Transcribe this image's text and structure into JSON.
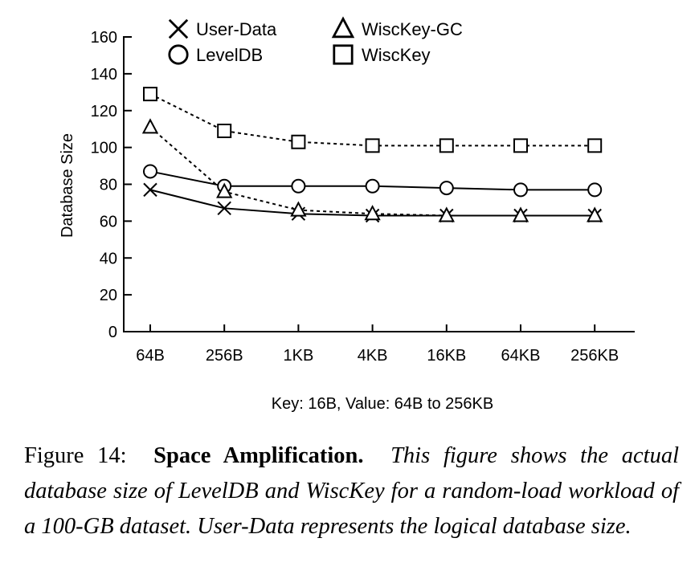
{
  "chart_data": {
    "type": "line",
    "categories": [
      "64B",
      "256B",
      "1KB",
      "4KB",
      "16KB",
      "64KB",
      "256KB"
    ],
    "xlabel": "Key: 16B, Value: 64B to 256KB",
    "ylabel": "Database Size",
    "ylim": [
      0,
      160
    ],
    "yticks": [
      0,
      20,
      40,
      60,
      80,
      100,
      120,
      140,
      160
    ],
    "grid": false,
    "legend_position": "top",
    "series": [
      {
        "name": "User-Data",
        "marker": "x",
        "line": "solid",
        "values": [
          77,
          67,
          64,
          63,
          63,
          63,
          63
        ]
      },
      {
        "name": "LevelDB",
        "marker": "circle",
        "line": "solid",
        "values": [
          87,
          79,
          79,
          79,
          78,
          77,
          77
        ]
      },
      {
        "name": "WiscKey-GC",
        "marker": "triangle",
        "line": "dashed",
        "values": [
          111,
          76,
          66,
          64,
          63,
          63,
          63
        ]
      },
      {
        "name": "WiscKey",
        "marker": "square",
        "line": "dashed",
        "values": [
          129,
          109,
          103,
          101,
          101,
          101,
          101
        ]
      }
    ]
  },
  "caption": {
    "label": "Figure 14:",
    "title": "Space Amplification.",
    "text": "This figure shows the actual database size of LevelDB and WiscKey for a random-load workload of a 100-GB dataset. User-Data represents the logical database size."
  }
}
